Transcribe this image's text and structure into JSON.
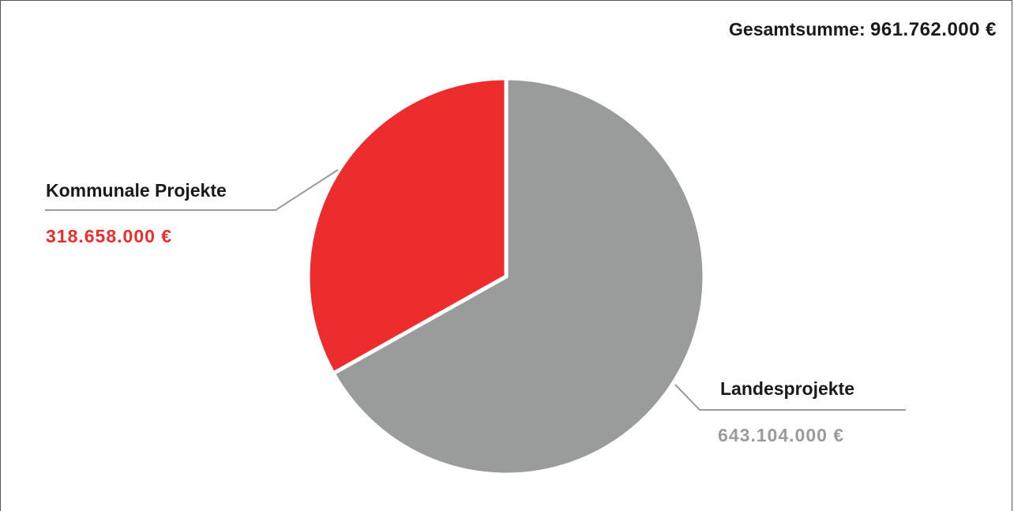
{
  "total": {
    "label": "Gesamtsumme:",
    "value": "961.762.000 €"
  },
  "chart_data": {
    "type": "pie",
    "slices": [
      {
        "name": "Landesprojekte",
        "value": 643104000,
        "value_label": "643.104.000 €",
        "color": "#9a9c9c"
      },
      {
        "name": "Kommunale Projekte",
        "value": 318658000,
        "value_label": "318.658.000 €",
        "color": "#ed2d2d"
      }
    ],
    "start": "top",
    "direction": "clockwise",
    "separator_color": "#ffffff",
    "leader_line_color": "#9a9c9c"
  }
}
